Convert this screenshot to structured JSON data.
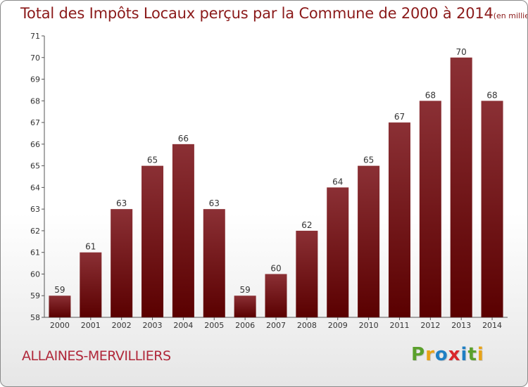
{
  "title": "Total des Impôts Locaux perçus par la Commune de 2000 à 2014",
  "title_unit": "(en milliers d'€)",
  "commune": "ALLAINES-MERVILLIERS",
  "logo": [
    "P",
    "r",
    "o",
    "x",
    "i",
    "t",
    "i"
  ],
  "logo_colors": [
    "#5aa02c",
    "#e8a317",
    "#1f7fc4",
    "#d9262c",
    "#1f7fc4",
    "#5aa02c",
    "#e8a317"
  ],
  "colors": {
    "bar_top": "#8b3035",
    "bar_bottom": "#5a0000",
    "title": "#8b1a1a"
  },
  "chart_data": {
    "type": "bar",
    "title": "Total des Impôts Locaux perçus par la Commune de 2000 à 2014",
    "xlabel": "",
    "ylabel": "",
    "categories": [
      "2000",
      "2001",
      "2002",
      "2003",
      "2004",
      "2005",
      "2006",
      "2007",
      "2008",
      "2009",
      "2010",
      "2011",
      "2012",
      "2013",
      "2014"
    ],
    "values": [
      59,
      61,
      63,
      65,
      66,
      63,
      59,
      60,
      62,
      64,
      65,
      67,
      68,
      70,
      68
    ],
    "ylim": [
      58,
      71
    ],
    "yticks": [
      58,
      59,
      60,
      61,
      62,
      63,
      64,
      65,
      66,
      67,
      68,
      69,
      70,
      71
    ],
    "grid": false,
    "legend": "none"
  }
}
